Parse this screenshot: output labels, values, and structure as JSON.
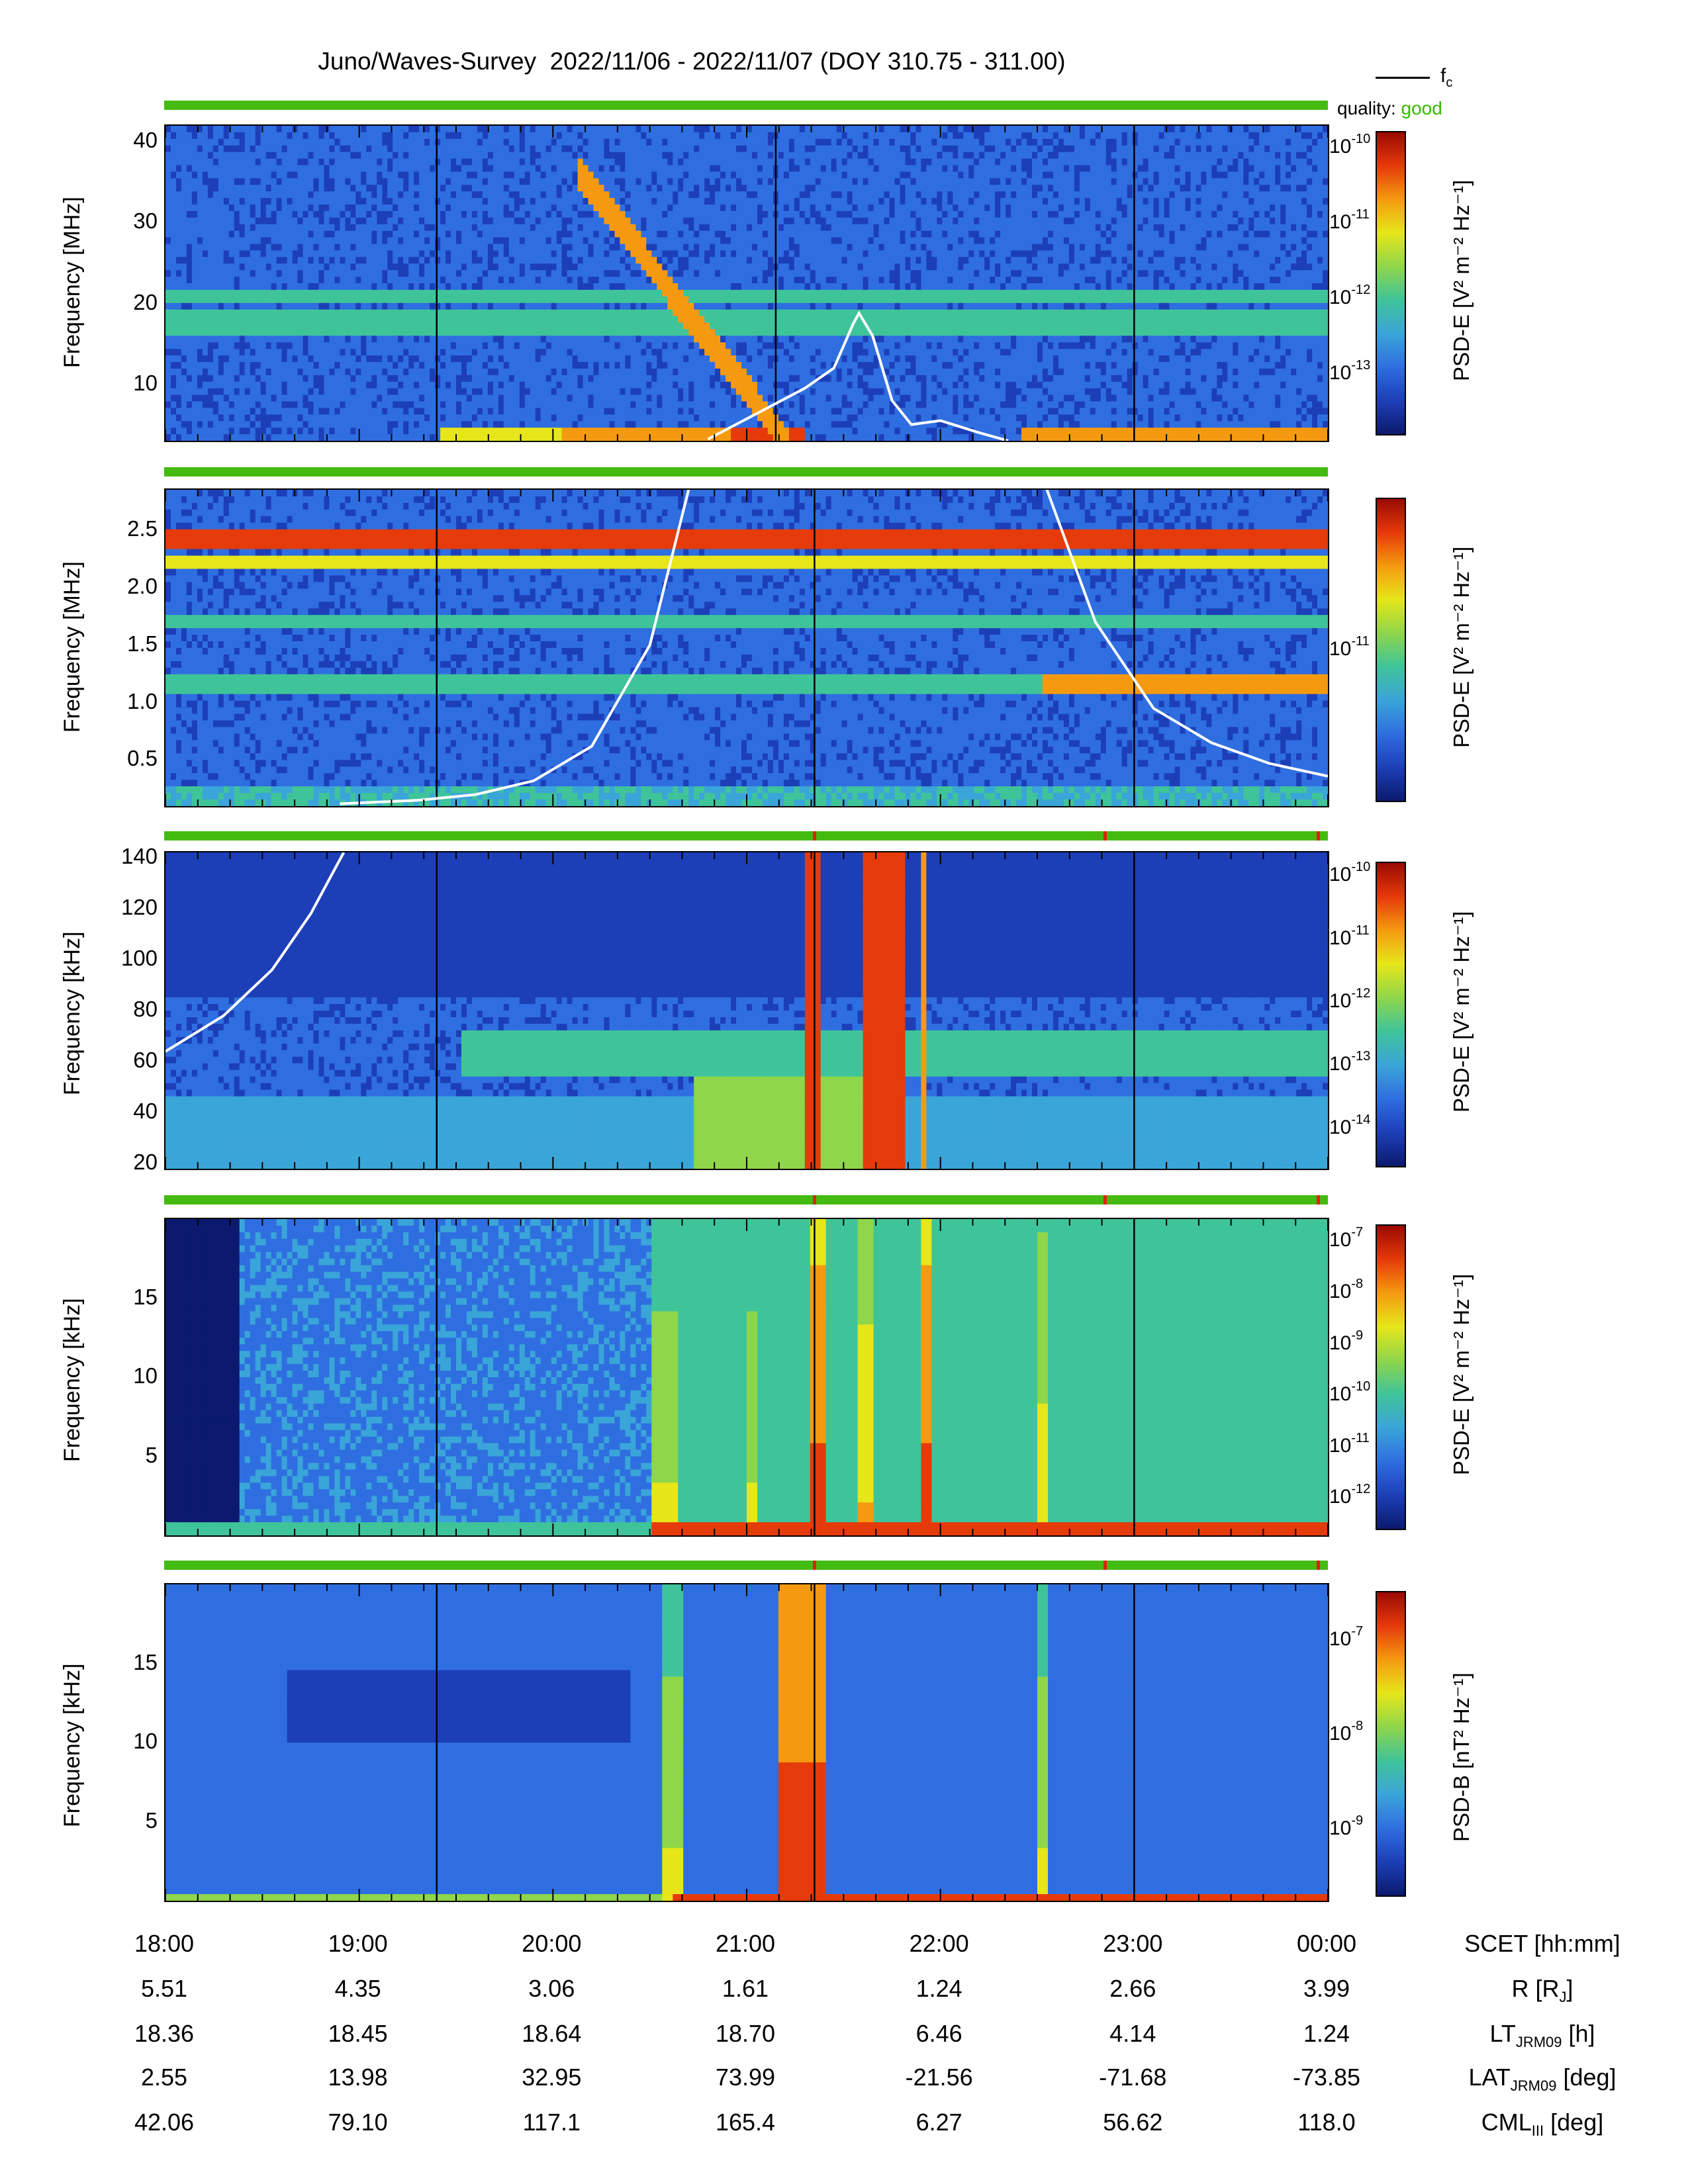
{
  "title": "Juno/Waves-Survey  2022/11/06 - 2022/11/07 (DOY 310.75 - 311.00)",
  "legend": {
    "line_label": "f",
    "line_sub": "c",
    "quality_label": "quality:",
    "quality_value": "good"
  },
  "colors": {
    "quality_good": "#44bb11",
    "quality_bad": "#e02010",
    "fc_line": "#ffffff",
    "event_line": "#000000"
  },
  "colormap": [
    "#0b1a6e",
    "#1c3fb8",
    "#2f6ee0",
    "#3aa5d8",
    "#3fc49a",
    "#8fd64a",
    "#e6e61a",
    "#f59a10",
    "#e53a0a",
    "#9a0a02"
  ],
  "panels": [
    {
      "id": "p1",
      "ylabel": "Frequency [MHz]",
      "yticks": [
        "40",
        "30",
        "20",
        "10"
      ],
      "cbar_label": "PSD-E [V² m⁻² Hz⁻¹]",
      "cbar_ticks": [
        {
          "b": "10",
          "e": "-10"
        },
        {
          "b": "10",
          "e": "-11"
        },
        {
          "b": "10",
          "e": "-12"
        },
        {
          "b": "10",
          "e": "-13"
        }
      ]
    },
    {
      "id": "p2",
      "ylabel": "Frequency [MHz]",
      "yticks": [
        "2.5",
        "2.0",
        "1.5",
        "1.0",
        "0.5"
      ],
      "cbar_label": "PSD-E [V² m⁻² Hz⁻¹]",
      "cbar_ticks": [
        {
          "b": "10",
          "e": "-11"
        }
      ]
    },
    {
      "id": "p3",
      "ylabel": "Frequency [kHz]",
      "yticks": [
        "140",
        "120",
        "100",
        "80",
        "60",
        "40",
        "20"
      ],
      "cbar_label": "PSD-E [V² m⁻² Hz⁻¹]",
      "cbar_ticks": [
        {
          "b": "10",
          "e": "-10"
        },
        {
          "b": "10",
          "e": "-11"
        },
        {
          "b": "10",
          "e": "-12"
        },
        {
          "b": "10",
          "e": "-13"
        },
        {
          "b": "10",
          "e": "-14"
        }
      ]
    },
    {
      "id": "p4",
      "ylabel": "Frequency [kHz]",
      "yticks": [
        "15",
        "10",
        "5"
      ],
      "cbar_label": "PSD-E [V² m⁻² Hz⁻¹]",
      "cbar_ticks": [
        {
          "b": "10",
          "e": "-7"
        },
        {
          "b": "10",
          "e": "-8"
        },
        {
          "b": "10",
          "e": "-9"
        },
        {
          "b": "10",
          "e": "-10"
        },
        {
          "b": "10",
          "e": "-11"
        },
        {
          "b": "10",
          "e": "-12"
        }
      ]
    },
    {
      "id": "p5",
      "ylabel": "Frequency [kHz]",
      "yticks": [
        "15",
        "10",
        "5"
      ],
      "cbar_label": "PSD-B [nT² Hz⁻¹]",
      "cbar_ticks": [
        {
          "b": "10",
          "e": "-7"
        },
        {
          "b": "10",
          "e": "-8"
        },
        {
          "b": "10",
          "e": "-9"
        }
      ]
    }
  ],
  "xaxis": {
    "rows": [
      {
        "label": "SCET [hh:mm]",
        "sub": "",
        "tail": "",
        "values": [
          "18:00",
          "19:00",
          "20:00",
          "21:00",
          "22:00",
          "23:00",
          "00:00"
        ]
      },
      {
        "label": "R [R",
        "sub": "J",
        "tail": "]",
        "values": [
          "5.51",
          "4.35",
          "3.06",
          "1.61",
          "1.24",
          "2.66",
          "3.99"
        ]
      },
      {
        "label": "LT",
        "sub": "JRM09",
        "tail": " [h]",
        "values": [
          "18.36",
          "18.45",
          "18.64",
          "18.70",
          "6.46",
          "4.14",
          "1.24"
        ]
      },
      {
        "label": "LAT",
        "sub": "JRM09",
        "tail": " [deg]",
        "values": [
          "2.55",
          "13.98",
          "32.95",
          "73.99",
          "-21.56",
          "-71.68",
          "-73.85"
        ]
      },
      {
        "label": "CML",
        "sub": "III",
        "tail": " [deg]",
        "values": [
          "42.06",
          "79.10",
          "117.1",
          "165.4",
          "6.27",
          "56.62",
          "118.0"
        ]
      }
    ]
  },
  "chart_data": {
    "type": "heatmap",
    "title": "Juno/Waves-Survey  2022/11/06 - 2022/11/07 (DOY 310.75 - 311.00)",
    "x_range": [
      "18:00",
      "00:00"
    ],
    "xlabel": "SCET [hh:mm]",
    "panels": [
      {
        "ylabel": "Frequency [MHz]",
        "ylim": [
          3,
          42
        ],
        "colorbar": "PSD-E [V² m⁻² Hz⁻¹]",
        "clim_log10": [
          -13.8,
          -9.8
        ],
        "event_times_h": [
          19.4,
          21.15,
          23.0
        ],
        "fc_curve": {
          "t_h": [
            20.8,
            21.3,
            21.45,
            21.55,
            21.58,
            21.65,
            21.75,
            21.85,
            22.0,
            22.2,
            22.35
          ],
          "f": [
            3.2,
            9.5,
            12.0,
            17.5,
            18.8,
            16.0,
            8.0,
            5.0,
            5.5,
            4.0,
            3.0
          ]
        }
      },
      {
        "ylabel": "Frequency [MHz]",
        "ylim": [
          0.1,
          2.85
        ],
        "colorbar": "PSD-E [V² m⁻² Hz⁻¹]",
        "clim_log10": [
          -11.8,
          -10.2
        ],
        "event_times_h": [
          19.4,
          21.35,
          23.0
        ],
        "fc_curve": {
          "t_h": [
            18.9,
            19.3,
            19.6,
            19.9,
            20.2,
            20.5,
            20.7,
            22.55,
            22.8,
            23.1,
            23.4,
            23.7,
            24.0
          ],
          "f": [
            0.12,
            0.15,
            0.2,
            0.32,
            0.62,
            1.5,
            2.85,
            2.85,
            1.7,
            0.95,
            0.65,
            0.47,
            0.36
          ]
        }
      },
      {
        "ylabel": "Frequency [kHz]",
        "ylim": [
          18,
          142
        ],
        "colorbar": "PSD-E [V² m⁻² Hz⁻¹]",
        "clim_log10": [
          -14.6,
          -9.8
        ],
        "event_times_h": [
          19.4,
          21.35,
          23.0
        ],
        "fc_curve": {
          "t_h": [
            18.0,
            18.3,
            18.55,
            18.75,
            18.92
          ],
          "f": [
            64,
            78,
            96,
            118,
            142
          ]
        }
      },
      {
        "ylabel": "Frequency [kHz]",
        "ylim": [
          0,
          20
        ],
        "colorbar": "PSD-E [V² m⁻² Hz⁻¹]",
        "clim_log10": [
          -12.6,
          -6.7
        ],
        "event_times_h": [
          19.4,
          21.35,
          23.0
        ]
      },
      {
        "ylabel": "Frequency [kHz]",
        "ylim": [
          0,
          20
        ],
        "colorbar": "PSD-B [nT² Hz⁻¹]",
        "clim_log10": [
          -9.7,
          -6.5
        ],
        "event_times_h": [
          19.4,
          21.35,
          23.0
        ]
      }
    ],
    "quality": {
      "value": "good",
      "bad_marks_h": [
        21.35,
        22.85,
        23.95
      ]
    }
  }
}
